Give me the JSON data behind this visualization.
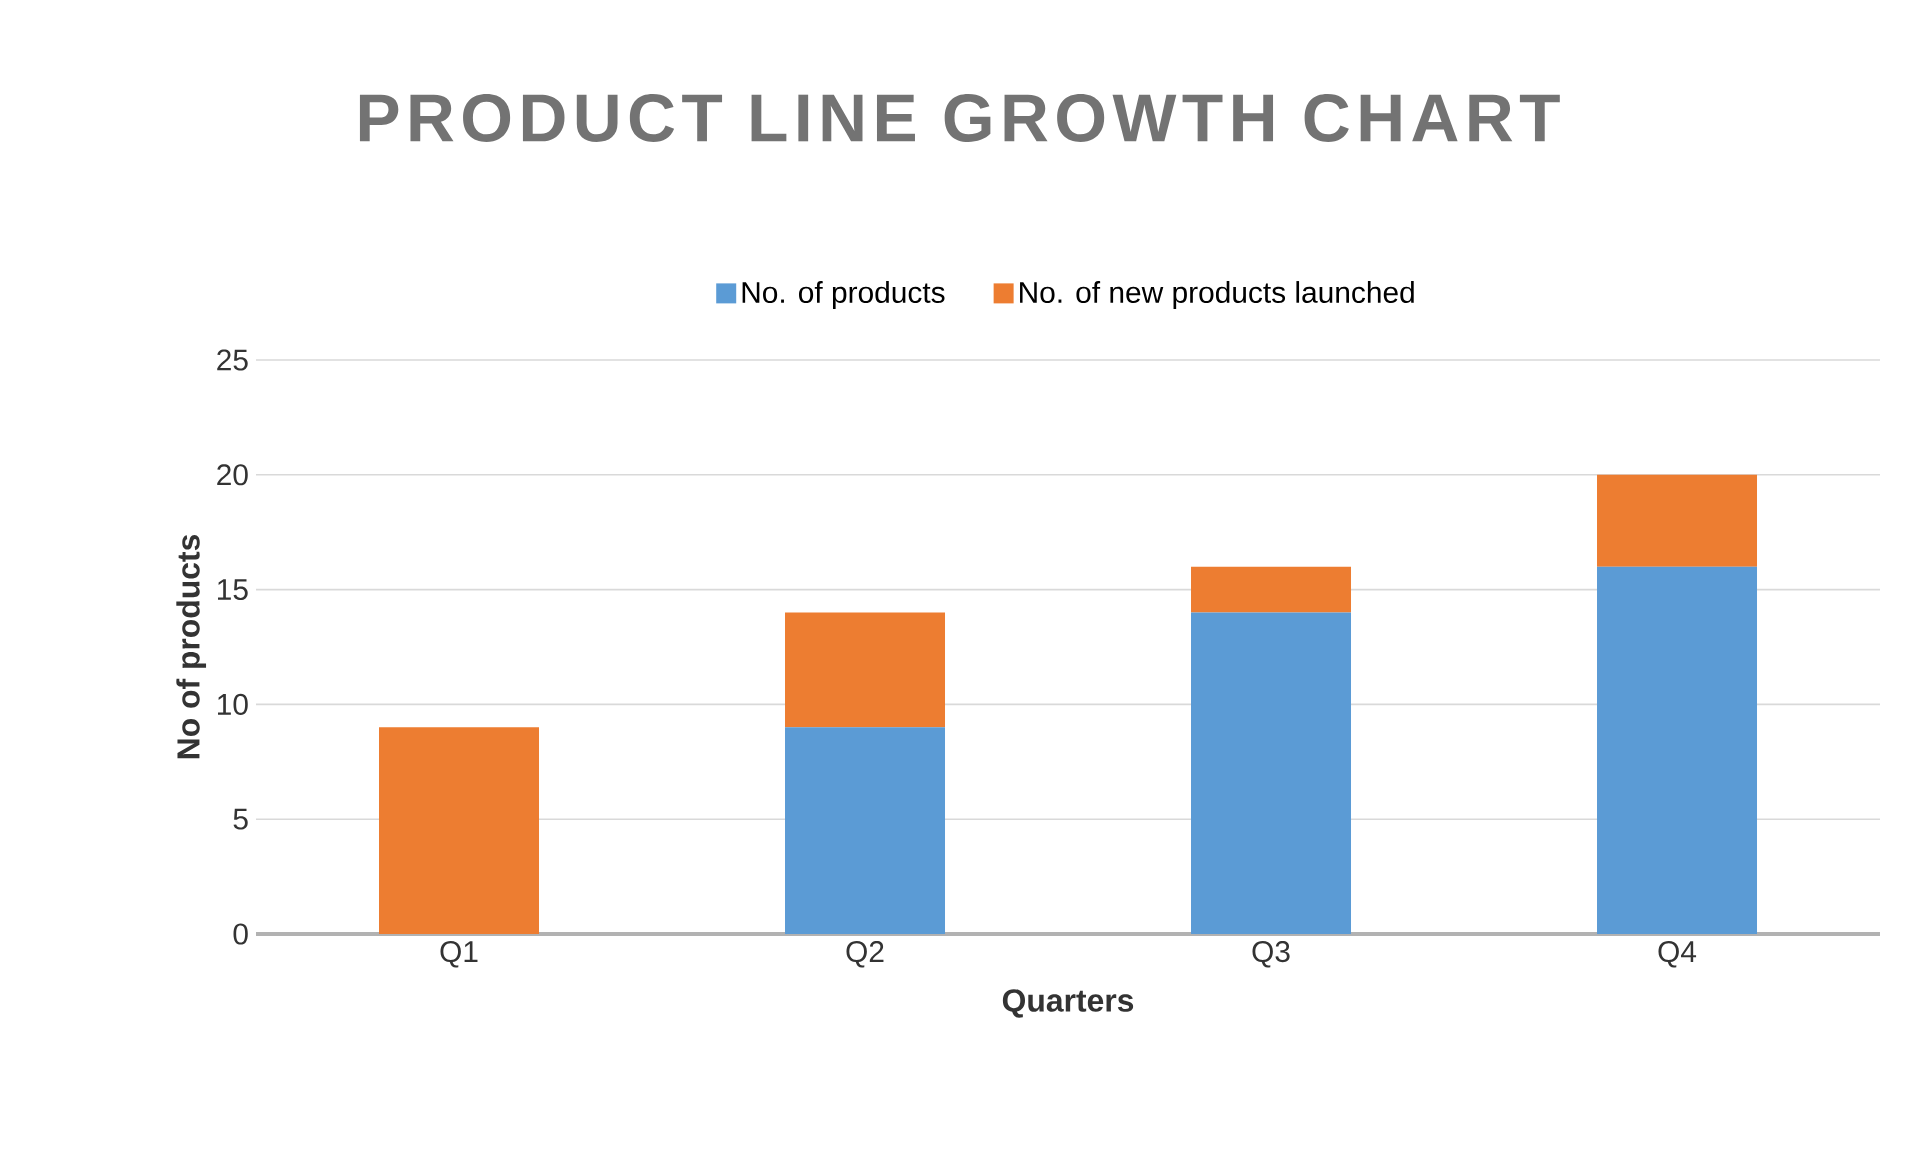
{
  "chart_data": {
    "type": "bar",
    "title": "PRODUCT LINE GROWTH CHART",
    "xlabel": "Quarters",
    "ylabel": "No of products",
    "categories": [
      "Q1",
      "Q2",
      "Q3",
      "Q4"
    ],
    "series": [
      {
        "name": "No. of products",
        "color": "#5b9bd5",
        "values": [
          0,
          9,
          14,
          16
        ]
      },
      {
        "name": "No. of new products launched",
        "color": "#ed7d31",
        "values": [
          9,
          5,
          2,
          4
        ]
      }
    ],
    "stacked": true,
    "ylim": [
      0,
      25
    ],
    "yticks": [
      0,
      5,
      10,
      15,
      20,
      25
    ],
    "grid": "y",
    "legend": "top"
  }
}
